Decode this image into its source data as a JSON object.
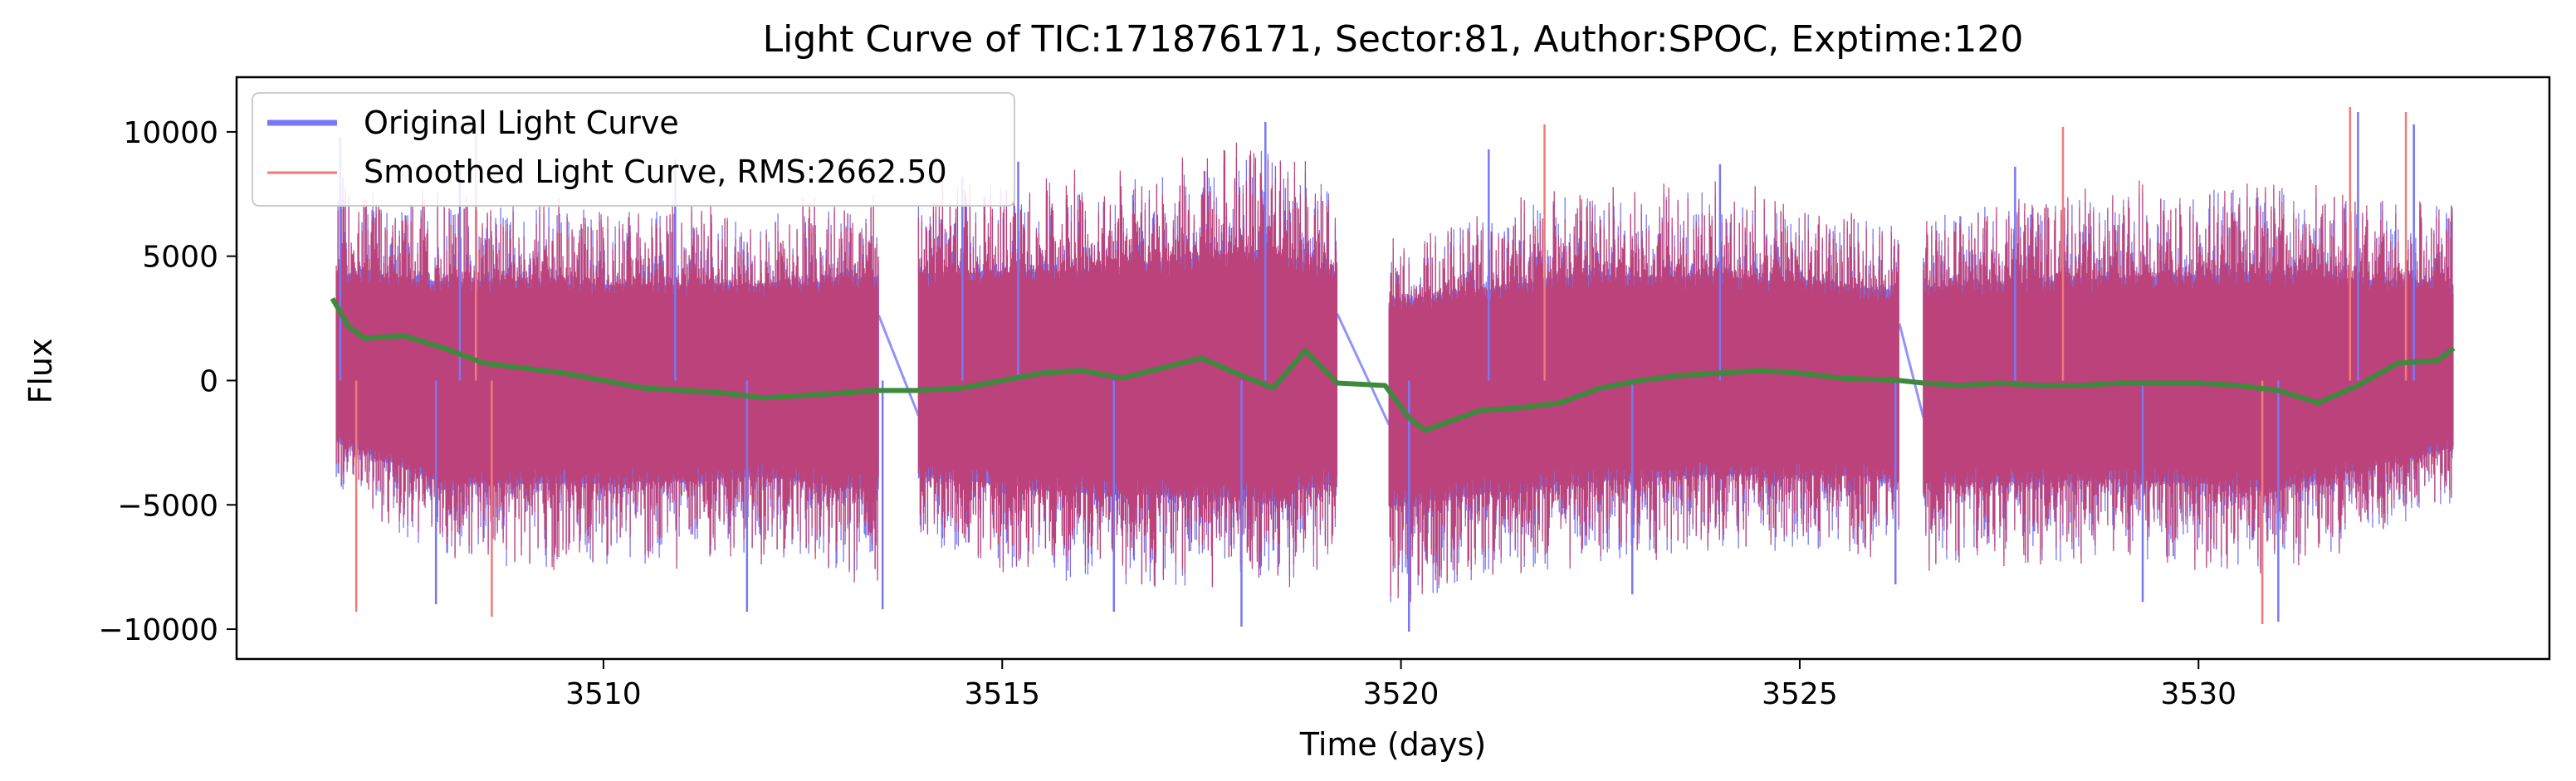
{
  "chart_data": {
    "type": "line",
    "title": "Light Curve of TIC:171876171, Sector:81, Author:SPOC, Exptime:120",
    "xlabel": "Time (days)",
    "ylabel": "Flux",
    "xlim": [
      3505.4,
      3534.4
    ],
    "ylim": [
      -11200,
      12200
    ],
    "x_ticks": [
      3510,
      3515,
      3520,
      3525,
      3530
    ],
    "x_tick_labels": [
      "3510",
      "3515",
      "3520",
      "3525",
      "3530"
    ],
    "y_ticks": [
      -10000,
      -5000,
      0,
      5000,
      10000
    ],
    "y_tick_labels": [
      "−10000",
      "−5000",
      "0",
      "5000",
      "10000"
    ],
    "grid": false,
    "legend_position": "upper-left",
    "segments": [
      [
        3506.65,
        3513.45
      ],
      [
        3513.95,
        3519.2
      ],
      [
        3519.85,
        3526.25
      ],
      [
        3526.55,
        3533.2
      ]
    ],
    "envelope": [
      {
        "x": 3506.7,
        "high": 7800,
        "low": -4500
      },
      {
        "x": 3508.0,
        "high": 7200,
        "low": -7500
      },
      {
        "x": 3510.0,
        "high": 7000,
        "low": -7500
      },
      {
        "x": 3512.0,
        "high": 6800,
        "low": -7000
      },
      {
        "x": 3513.4,
        "high": 7500,
        "low": -8000
      },
      {
        "x": 3514.0,
        "high": 7800,
        "low": -7000
      },
      {
        "x": 3516.0,
        "high": 8000,
        "low": -8200
      },
      {
        "x": 3518.3,
        "high": 9500,
        "low": -8500
      },
      {
        "x": 3519.1,
        "high": 8000,
        "low": -7500
      },
      {
        "x": 3519.9,
        "high": 5500,
        "low": -9000
      },
      {
        "x": 3522.0,
        "high": 7500,
        "low": -7500
      },
      {
        "x": 3524.0,
        "high": 7600,
        "low": -6800
      },
      {
        "x": 3526.2,
        "high": 6500,
        "low": -7000
      },
      {
        "x": 3526.6,
        "high": 6800,
        "low": -7500
      },
      {
        "x": 3529.0,
        "high": 7500,
        "low": -7200
      },
      {
        "x": 3531.0,
        "high": 7800,
        "low": -7800
      },
      {
        "x": 3533.1,
        "high": 7000,
        "low": -5000
      }
    ],
    "original_peaks": [
      {
        "x": 3506.7,
        "y": 9800
      },
      {
        "x": 3508.2,
        "y": 8600
      },
      {
        "x": 3510.9,
        "y": 8900
      },
      {
        "x": 3514.5,
        "y": 8200
      },
      {
        "x": 3515.2,
        "y": 8800
      },
      {
        "x": 3518.3,
        "y": 10400
      },
      {
        "x": 3521.1,
        "y": 9300
      },
      {
        "x": 3524.0,
        "y": 8700
      },
      {
        "x": 3527.7,
        "y": 8600
      },
      {
        "x": 3532.0,
        "y": 10800
      },
      {
        "x": 3532.7,
        "y": 10300
      }
    ],
    "original_dips": [
      {
        "x": 3507.9,
        "y": -9000
      },
      {
        "x": 3511.8,
        "y": -9300
      },
      {
        "x": 3513.5,
        "y": -9200
      },
      {
        "x": 3516.4,
        "y": -9300
      },
      {
        "x": 3518.0,
        "y": -9900
      },
      {
        "x": 3520.1,
        "y": -10100
      },
      {
        "x": 3522.9,
        "y": -8600
      },
      {
        "x": 3526.2,
        "y": -8200
      },
      {
        "x": 3529.3,
        "y": -8900
      },
      {
        "x": 3531.0,
        "y": -9700
      }
    ],
    "smoothed_peaks": [
      {
        "x": 3508.4,
        "y": 10300
      },
      {
        "x": 3521.8,
        "y": 10300
      },
      {
        "x": 3528.3,
        "y": 10200
      },
      {
        "x": 3531.9,
        "y": 11000
      },
      {
        "x": 3532.6,
        "y": 10800
      }
    ],
    "smoothed_dips": [
      {
        "x": 3506.9,
        "y": -9300
      },
      {
        "x": 3508.6,
        "y": -9500
      },
      {
        "x": 3530.8,
        "y": -9800
      }
    ],
    "trend": {
      "x": [
        3506.6,
        3506.8,
        3507.0,
        3507.5,
        3508.0,
        3508.5,
        3509.0,
        3509.5,
        3510.0,
        3510.5,
        3511.0,
        3511.5,
        3512.0,
        3512.5,
        3513.0,
        3513.4,
        3513.9,
        3514.5,
        3515.0,
        3515.5,
        3516.0,
        3516.5,
        3517.0,
        3517.5,
        3518.0,
        3518.4,
        3518.8,
        3519.2,
        3519.8,
        3520.1,
        3520.3,
        3521.0,
        3521.5,
        3522.0,
        3522.5,
        3523.0,
        3523.5,
        3524.0,
        3524.5,
        3525.0,
        3525.5,
        3526.25,
        3526.55,
        3527.0,
        3527.5,
        3528.0,
        3528.5,
        3529.0,
        3529.5,
        3530.0,
        3530.5,
        3531.0,
        3531.5,
        3532.0,
        3532.5,
        3533.0,
        3533.2
      ],
      "y": [
        3300,
        2200,
        1700,
        1800,
        1300,
        700,
        500,
        300,
        0,
        -300,
        -400,
        -500,
        -700,
        -600,
        -500,
        -400,
        -400,
        -300,
        0,
        300,
        400,
        100,
        500,
        900,
        200,
        -300,
        1200,
        -100,
        -200,
        -1500,
        -2000,
        -1200,
        -1100,
        -900,
        -300,
        0,
        200,
        300,
        400,
        300,
        100,
        0,
        -100,
        -200,
        -100,
        -200,
        -200,
        -100,
        -100,
        -100,
        -200,
        -400,
        -900,
        -200,
        700,
        800,
        1300
      ]
    },
    "series": [
      {
        "name": "Original Light Curve",
        "color": "#7878f5"
      },
      {
        "name": "Smoothed Light Curve, RMS:2662.50",
        "color": "#f07a7a"
      },
      {
        "color": "#3c8a3c"
      }
    ],
    "fill_color": "#bf3f73"
  }
}
